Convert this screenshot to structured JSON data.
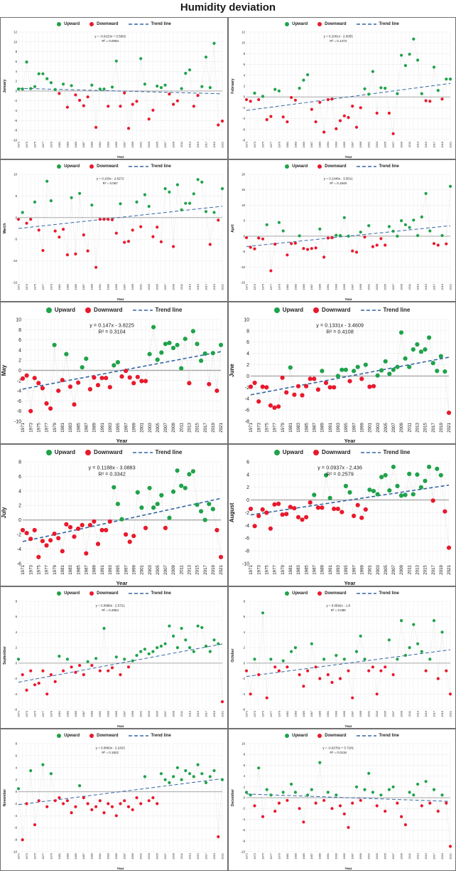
{
  "title": "Humidity deviation",
  "legend": {
    "upward": "Upward",
    "downward": "Downward",
    "trend": "Trend line"
  },
  "xlabel": "Year",
  "colors": {
    "upward": "#1fa24a",
    "downward": "#e8192c",
    "trend": "#3465a4",
    "connector": "#c6c6c6",
    "grid": "#e9e9e9",
    "zero": "#a9a9a9",
    "text": "#1a1a1a"
  },
  "x_years": [
    1971,
    1972,
    1973,
    1974,
    1975,
    1976,
    1977,
    1978,
    1979,
    1980,
    1981,
    1982,
    1983,
    1984,
    1985,
    1986,
    1987,
    1988,
    1989,
    1990,
    1991,
    1992,
    1993,
    1994,
    1995,
    1996,
    1997,
    1998,
    1999,
    2000,
    2001,
    2002,
    2003,
    2004,
    2005,
    2006,
    2007,
    2008,
    2009,
    2010,
    2011,
    2012,
    2013,
    2014,
    2015,
    2016,
    2017,
    2018,
    2019,
    2020,
    2021
  ],
  "x_ticks": [
    1971,
    1973,
    1975,
    1977,
    1979,
    1981,
    1983,
    1985,
    1987,
    1989,
    1991,
    1993,
    1995,
    1997,
    1999,
    2001,
    2003,
    2005,
    2007,
    2009,
    2011,
    2013,
    2015,
    2017,
    2019,
    2021
  ],
  "chart_data": [
    {
      "type": "scatter",
      "month": "January",
      "equation": "y = -0.0223x + 0.5802",
      "r2": "R² = 0.0084",
      "slope": -0.0223,
      "intercept": 0.5802,
      "ylim": [
        -10,
        12
      ],
      "ystep": 2,
      "size": "small",
      "values": [
        0.4,
        0.4,
        5.9,
        0.5,
        0.9,
        3.5,
        3.5,
        2.5,
        1.7,
        0.3,
        -0.5,
        1.4,
        -3.3,
        1.1,
        -0.8,
        -1.9,
        -3.0,
        -1.2,
        1.2,
        -7.4,
        0.4,
        0.4,
        -3.1,
        0.8,
        6.1,
        -3.1,
        -0.4,
        -7.6,
        -2.7,
        -2.1,
        6.6,
        1.4,
        -5.7,
        -3.9,
        1.0,
        0.7,
        1.2,
        -0.6,
        -2.7,
        -2.0,
        0.5,
        3.6,
        4.3,
        -3.1,
        -0.9,
        0.9,
        6.9,
        0.7,
        9.7,
        -6.9,
        -6.1
      ]
    },
    {
      "type": "scatter",
      "month": "February",
      "equation": "y = 0.1001x - 2.6055",
      "r2": "R² = 0.1473",
      "slope": 0.1001,
      "intercept": -2.6055,
      "ylim": [
        -8,
        12
      ],
      "ystep": 2,
      "size": "small",
      "values": [
        -0.5,
        -0.8,
        0.7,
        -0.5,
        0.1,
        -4.2,
        -3.6,
        1.4,
        1.1,
        -3.7,
        -4.6,
        -0.1,
        -0.6,
        1.6,
        3.1,
        4.1,
        -2.3,
        -4.6,
        -1.0,
        -6.5,
        -0.5,
        -0.4,
        -5.9,
        -4.4,
        -3.5,
        -3.8,
        -1.7,
        -5.6,
        -2.0,
        1.5,
        0.5,
        4.7,
        -3.0,
        1.7,
        1.6,
        -3.0,
        -6.8,
        0.6,
        7.7,
        5.8,
        7.9,
        10.7,
        6.8,
        0.6,
        -0.7,
        -0.8,
        5.5,
        1.2,
        -0.4,
        3.3,
        3.3
      ]
    },
    {
      "type": "scatter",
      "month": "March",
      "equation": "y = 0.103x - 2.6272",
      "r2": "R² = 0.067",
      "slope": 0.103,
      "intercept": -2.6272,
      "ylim": [
        -15,
        10
      ],
      "ystep": 5,
      "size": "small",
      "values": [
        -0.4,
        1.2,
        -1.3,
        -0.4,
        3.6,
        -2.9,
        -7.6,
        8.4,
        3.9,
        -3.1,
        -4.5,
        -2.7,
        -8.6,
        4.6,
        -8.4,
        5.6,
        -4.0,
        -7.7,
        2.9,
        -11.5,
        -0.4,
        -0.4,
        -0.4,
        -0.5,
        -3.6,
        3.2,
        -5.7,
        -5.5,
        -2.9,
        3.6,
        -2.1,
        5.3,
        2.6,
        -4.4,
        -2.2,
        -5.6,
        6.7,
        5.9,
        -6.7,
        7.6,
        1.8,
        3.3,
        3.3,
        5.5,
        8.8,
        8.2,
        1.4,
        -6.2,
        1.2,
        -0.6,
        6.7
      ]
    },
    {
      "type": "scatter",
      "month": "April",
      "equation": "y = 0.1346x - 3.5011",
      "r2": "R² = 0.1849",
      "slope": 0.1346,
      "intercept": -3.5011,
      "ylim": [
        -15,
        20
      ],
      "ystep": 5,
      "size": "small",
      "values": [
        -0.5,
        -3.6,
        -4.1,
        -0.6,
        -0.9,
        3.7,
        -11.2,
        -2.6,
        4.4,
        1.7,
        -6.1,
        -2.4,
        -2.3,
        0.1,
        -4.0,
        -4.3,
        -4.0,
        -3.8,
        2.3,
        -6.8,
        -0.6,
        -0.5,
        0.3,
        0.2,
        6.0,
        0.0,
        -4.8,
        -5.2,
        1.3,
        -0.3,
        3.4,
        -3.4,
        -2.9,
        -0.8,
        -2.9,
        3.1,
        1.6,
        0.0,
        5.0,
        3.7,
        2.8,
        5.2,
        0.2,
        6.2,
        13.8,
        1.7,
        -2.4,
        -2.9,
        0.2,
        -2.5,
        16.1
      ]
    },
    {
      "type": "scatter",
      "month": "May",
      "equation": "y = 0.147x - 3.8225",
      "r2": "R² = 0.3104",
      "slope": 0.147,
      "intercept": -3.8225,
      "ylim": [
        -10,
        10
      ],
      "ystep": 2,
      "size": "large",
      "values": [
        -1.6,
        -1.0,
        -8.0,
        -1.5,
        -2.5,
        -3.5,
        -6.5,
        -7.5,
        5.0,
        -4.0,
        -1.9,
        3.2,
        -3.2,
        -6.7,
        -2.4,
        0.6,
        2.3,
        -3.7,
        -1.4,
        -2.9,
        -1.5,
        -1.5,
        -3.3,
        1.0,
        1.6,
        -1.2,
        -0.1,
        -1.4,
        -2.5,
        -1.3,
        -2.1,
        -2.1,
        3.2,
        8.5,
        2.1,
        3.5,
        5.2,
        5.4,
        4.4,
        5.0,
        0.4,
        6.2,
        -2.5,
        7.7,
        5.2,
        1.9,
        3.3,
        -2.7,
        3.4,
        -4.0,
        5.0
      ]
    },
    {
      "type": "scatter",
      "month": "June",
      "equation": "y = 0.1331x - 3.4609",
      "r2": "R² = 0.4108",
      "slope": 0.1331,
      "intercept": -3.4609,
      "ylim": [
        -8,
        10
      ],
      "ystep": 2,
      "size": "large",
      "values": [
        -1.9,
        -1.2,
        -4.5,
        -1.9,
        -2.0,
        -5.2,
        -5.6,
        -5.4,
        -0.3,
        -2.9,
        1.5,
        -3.3,
        -1.8,
        -3.4,
        -1.8,
        -0.5,
        -0.5,
        -2.4,
        0.9,
        -1.2,
        -2.0,
        -2.0,
        0.0,
        1.1,
        1.1,
        -0.9,
        0.9,
        1.6,
        -0.5,
        2.0,
        -1.9,
        -1.8,
        0.1,
        1.0,
        2.6,
        0.4,
        1.1,
        1.6,
        7.7,
        3.1,
        1.6,
        4.7,
        5.6,
        4.3,
        4.7,
        6.8,
        2.3,
        0.9,
        3.5,
        0.8,
        -6.5
      ]
    },
    {
      "type": "scatter",
      "month": "July",
      "equation": "y = 0.1188x - 3.0883",
      "r2": "R² = 0.3342",
      "slope": 0.1188,
      "intercept": -3.0883,
      "ylim": [
        -6,
        8
      ],
      "ystep": 2,
      "size": "large",
      "values": [
        -1.4,
        -1.8,
        -2.6,
        -1.4,
        -5.1,
        -2.9,
        -3.5,
        -2.8,
        -1.9,
        -2.5,
        -4.3,
        -0.6,
        -1.0,
        -2.3,
        -1.2,
        -0.7,
        -4.6,
        -0.7,
        -0.2,
        -3.3,
        -1.4,
        -1.4,
        -0.2,
        4.5,
        2.2,
        0.1,
        -2.0,
        -3.0,
        -2.2,
        3.8,
        1.7,
        -1.1,
        4.4,
        1.7,
        2.2,
        3.4,
        -1.1,
        0.3,
        3.9,
        6.8,
        4.7,
        4.4,
        6.3,
        6.7,
        2.1,
        1.2,
        0.0,
        2.2,
        1.5,
        -1.4,
        -5.1
      ]
    },
    {
      "type": "scatter",
      "month": "August",
      "equation": "y = 0.0937x - 2.436",
      "r2": "R² = 0.2579",
      "slope": 0.0937,
      "intercept": -2.436,
      "ylim": [
        -10,
        6
      ],
      "ystep": 2,
      "size": "large",
      "values": [
        -1.4,
        -4.1,
        -2.5,
        -1.5,
        -2.0,
        -4.5,
        -0.7,
        -0.6,
        -2.3,
        -2.2,
        -1.1,
        -1.3,
        -2.7,
        -3.1,
        -2.7,
        -0.4,
        0.8,
        -1.2,
        -1.2,
        3.9,
        0.3,
        -1.4,
        -1.4,
        -1.9,
        2.2,
        1.2,
        -2.5,
        -0.8,
        -2.8,
        -1.5,
        1.6,
        1.4,
        0.9,
        3.6,
        3.9,
        1.5,
        5.2,
        2.2,
        0.7,
        0.8,
        4.1,
        0.9,
        4.0,
        2.0,
        3.0,
        5.2,
        -0.1,
        4.9,
        3.9,
        -1.8,
        -7.5
      ]
    },
    {
      "type": "scatter",
      "month": "September",
      "equation": "y = 0.0989x - 2.5721",
      "r2": "R² = 0.2854",
      "slope": 0.0989,
      "intercept": -2.5721,
      "ylim": [
        -6,
        8
      ],
      "ystep": 2,
      "size": "small",
      "values": [
        0.5,
        -1.5,
        -3.5,
        -1.0,
        -2.8,
        -2.6,
        -1.0,
        -4.0,
        -1.5,
        -2.4,
        0.9,
        -1.0,
        0.5,
        -0.5,
        -1.2,
        -0.3,
        -1.5,
        0.2,
        -0.3,
        0.6,
        -1.0,
        4.5,
        -1.0,
        -0.6,
        0.8,
        -1.5,
        0.5,
        -0.5,
        0.3,
        1.0,
        1.5,
        1.8,
        1.2,
        1.5,
        2.0,
        2.2,
        2.5,
        4.8,
        3.5,
        2.0,
        4.5,
        3.0,
        2.0,
        1.5,
        4.8,
        4.6,
        2.2,
        1.5,
        3.0,
        2.5,
        -5.0
      ]
    },
    {
      "type": "scatter",
      "month": "October",
      "equation": "y = 0.0692x - 1.8",
      "r2": "R² = 0.085",
      "slope": 0.0692,
      "intercept": -1.8,
      "ylim": [
        -6,
        8
      ],
      "ystep": 2,
      "size": "small",
      "values": [
        -1.0,
        -4.0,
        0.5,
        -1.5,
        6.5,
        -4.5,
        0.5,
        -0.5,
        -1.0,
        0.3,
        -0.5,
        1.5,
        2.0,
        -1.5,
        -3.0,
        -1.0,
        2.5,
        -0.5,
        -2.0,
        0.5,
        -1.5,
        -2.5,
        1.0,
        -2.0,
        0.5,
        -1.0,
        -4.5,
        1.5,
        3.5,
        0.5,
        -1.0,
        -0.5,
        -4.0,
        -1.0,
        -0.5,
        3.0,
        -1.5,
        0.5,
        5.5,
        1.0,
        2.0,
        5.0,
        2.5,
        1.5,
        -1.0,
        0.5,
        5.5,
        -2.0,
        4.0,
        -1.0,
        -4.0
      ]
    },
    {
      "type": "scatter",
      "month": "November",
      "equation": "y = 0.0863x - 2.2423",
      "r2": "R² = 0.1822",
      "slope": 0.0863,
      "intercept": -2.2423,
      "ylim": [
        -10,
        8
      ],
      "ystep": 2,
      "size": "small",
      "values": [
        0.5,
        -8.0,
        -2.0,
        3.5,
        -5.5,
        -1.5,
        4.5,
        -2.5,
        3.0,
        -1.5,
        -1.0,
        -2.0,
        -1.5,
        -3.5,
        -2.5,
        1.0,
        -1.0,
        -2.0,
        -3.0,
        -2.5,
        -1.5,
        -3.5,
        -2.0,
        -2.5,
        -4.0,
        -2.0,
        -1.5,
        -2.5,
        -3.0,
        -1.0,
        -2.0,
        2.5,
        -1.5,
        -1.0,
        -2.0,
        3.0,
        2.0,
        1.5,
        2.5,
        4.0,
        2.0,
        3.5,
        3.0,
        2.5,
        4.5,
        3.0,
        1.5,
        2.5,
        3.5,
        -7.5,
        2.0
      ]
    },
    {
      "type": "scatter",
      "month": "December",
      "equation": "y = -0.0276x + 0.7181",
      "r2": "R² = 0.0118",
      "slope": -0.0276,
      "intercept": 0.7181,
      "ylim": [
        -10,
        10
      ],
      "ystep": 2,
      "size": "small",
      "values": [
        1.0,
        0.5,
        -1.5,
        5.5,
        -3.5,
        1.5,
        0.5,
        -2.5,
        -1.0,
        1.0,
        -0.5,
        2.5,
        1.0,
        -2.0,
        -4.5,
        0.5,
        1.5,
        -1.0,
        6.5,
        -0.5,
        1.0,
        -2.0,
        0.5,
        -1.5,
        -3.0,
        -5.5,
        -1.0,
        2.0,
        -0.5,
        1.5,
        4.5,
        1.0,
        -1.5,
        0.5,
        -2.5,
        1.5,
        2.0,
        -1.0,
        -3.5,
        -5.0,
        1.0,
        0.5,
        2.5,
        -1.5,
        3.0,
        -1.0,
        1.5,
        -2.5,
        0.5,
        -1.0,
        -9.0
      ]
    }
  ]
}
